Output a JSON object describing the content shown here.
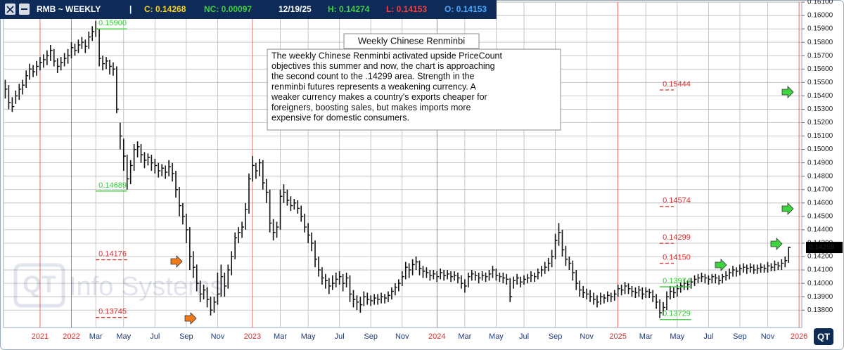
{
  "header": {
    "symbol": "RMB ~ WEEKLY",
    "separator": "|",
    "close": "C: 0.14268",
    "net_change": "NC: 0.00097",
    "date": "12/19/25",
    "high": "H: 0.14274",
    "low": "L: 0.14153",
    "open": "O: 0.14153"
  },
  "chart_data": {
    "type": "ohlc",
    "title": "Weekly Chinese Renminbi",
    "comment": [
      "The weekly Chinese Renminbi activated upside PriceCount",
      "objectives this summer and now, the chart is approaching",
      "the second count to the .14299 area.  Strength in the",
      "renminbi futures represents a weakening currency.  A",
      "weaker currency makes a country's exports cheaper for",
      "foreigners, boosting sales, but makes imports more",
      "expensive for domestic consumers."
    ],
    "watermark": "Info Systems",
    "logo": "QT",
    "color": "#111111",
    "grid": true,
    "grid_color": "#b8b8b8",
    "year_color": "#d83030",
    "month_color": "#1f3a78",
    "ylim": [
      0.1367,
      0.161
    ],
    "yticks": [
      {
        "value": 0.138,
        "label": "0.13800"
      },
      {
        "value": 0.139,
        "label": "0.13900"
      },
      {
        "value": 0.14,
        "label": "0.14000"
      },
      {
        "value": 0.141,
        "label": "0.14100"
      },
      {
        "value": 0.142,
        "label": "0.14200"
      },
      {
        "value": 0.143,
        "label": "0.14300"
      },
      {
        "value": 0.144,
        "label": "0.14400"
      },
      {
        "value": 0.145,
        "label": "0.14500"
      },
      {
        "value": 0.146,
        "label": "0.14600"
      },
      {
        "value": 0.147,
        "label": "0.14700"
      },
      {
        "value": 0.148,
        "label": "0.14800"
      },
      {
        "value": 0.149,
        "label": "0.14900"
      },
      {
        "value": 0.15,
        "label": "0.15000"
      },
      {
        "value": 0.151,
        "label": "0.15100"
      },
      {
        "value": 0.152,
        "label": "0.15200"
      },
      {
        "value": 0.153,
        "label": "0.15300"
      },
      {
        "value": 0.154,
        "label": "0.15400"
      },
      {
        "value": 0.155,
        "label": "0.15500"
      },
      {
        "value": 0.156,
        "label": "0.15600"
      },
      {
        "value": 0.157,
        "label": "0.15700"
      },
      {
        "value": 0.158,
        "label": "0.15800"
      },
      {
        "value": 0.159,
        "label": "0.15900"
      },
      {
        "value": 0.16,
        "label": "0.16000"
      },
      {
        "value": 0.161,
        "label": "0.16100"
      }
    ],
    "last_price": {
      "value": 0.14268,
      "label": "0.14268"
    },
    "categories": [
      null,
      null,
      null,
      null,
      null,
      null,
      null,
      null,
      null,
      null,
      "2021",
      null,
      null,
      null,
      null,
      null,
      null,
      null,
      null,
      "2022",
      null,
      null,
      null,
      null,
      null,
      null,
      "Mar",
      null,
      null,
      null,
      null,
      null,
      null,
      null,
      "May",
      null,
      null,
      null,
      null,
      null,
      null,
      null,
      null,
      "Jul",
      null,
      null,
      null,
      null,
      null,
      null,
      null,
      null,
      "Sep",
      null,
      null,
      null,
      null,
      null,
      null,
      null,
      null,
      "Nov",
      null,
      null,
      null,
      null,
      null,
      null,
      null,
      null,
      null,
      "2023",
      null,
      null,
      null,
      null,
      null,
      null,
      null,
      "Mar",
      null,
      null,
      null,
      null,
      null,
      null,
      null,
      "May",
      null,
      null,
      null,
      null,
      null,
      null,
      null,
      null,
      "Jul",
      null,
      null,
      null,
      null,
      null,
      null,
      null,
      null,
      "Sep",
      null,
      null,
      null,
      null,
      null,
      null,
      null,
      null,
      "Nov",
      null,
      null,
      null,
      null,
      null,
      null,
      null,
      null,
      null,
      "2024",
      null,
      null,
      null,
      null,
      null,
      null,
      null,
      "Mar",
      null,
      null,
      null,
      null,
      null,
      null,
      null,
      null,
      "May",
      null,
      null,
      null,
      null,
      null,
      null,
      null,
      "Jul",
      null,
      null,
      null,
      null,
      null,
      null,
      null,
      null,
      "Sep",
      null,
      null,
      null,
      null,
      null,
      null,
      null,
      null,
      "Nov",
      null,
      null,
      null,
      null,
      null,
      null,
      null,
      null,
      "2025",
      null,
      null,
      null,
      null,
      null,
      null,
      null,
      "Mar",
      null,
      null,
      null,
      null,
      null,
      null,
      null,
      null,
      "May",
      null,
      null,
      null,
      null,
      null,
      null,
      null,
      null,
      "Jul",
      null,
      null,
      null,
      null,
      null,
      null,
      null,
      null,
      "Sep",
      null,
      null,
      null,
      null,
      null,
      null,
      null,
      "Nov",
      null,
      null,
      null,
      null,
      null,
      null,
      null,
      null,
      "2026"
    ],
    "high": [
      0.1552,
      0.1548,
      0.1539,
      0.1544,
      0.1549,
      0.1552,
      0.1559,
      0.1564,
      0.1563,
      0.1566,
      0.1569,
      0.1571,
      0.1574,
      0.1578,
      0.1575,
      0.1568,
      0.1569,
      0.1572,
      0.1575,
      0.158,
      0.1579,
      0.1582,
      0.1584,
      0.1582,
      0.1588,
      0.1592,
      0.1596,
      0.159,
      0.157,
      0.1569,
      0.1567,
      0.1565,
      0.1562,
      0.152,
      0.1508,
      0.1496,
      0.1492,
      0.1504,
      0.1506,
      0.1504,
      0.1498,
      0.1497,
      0.1496,
      0.1493,
      0.149,
      0.1489,
      0.1488,
      0.1492,
      0.149,
      0.1484,
      0.1472,
      0.146,
      0.1452,
      0.1442,
      0.1424,
      0.1414,
      0.1402,
      0.1399,
      0.1397,
      0.139,
      0.139,
      0.1408,
      0.1414,
      0.1408,
      0.1414,
      0.1424,
      0.1438,
      0.1442,
      0.1446,
      0.146,
      0.1482,
      0.1495,
      0.149,
      0.1493,
      0.1492,
      0.1478,
      0.147,
      0.1448,
      0.1446,
      0.147,
      0.1474,
      0.147,
      0.1465,
      0.1463,
      0.1462,
      0.1458,
      0.1452,
      0.1445,
      0.1438,
      0.1432,
      0.142,
      0.1412,
      0.1407,
      0.1404,
      0.1406,
      0.1408,
      0.1409,
      0.1407,
      0.1408,
      0.1406,
      0.1395,
      0.1391,
      0.139,
      0.1394,
      0.1393,
      0.1391,
      0.1392,
      0.1392,
      0.1393,
      0.1392,
      0.1394,
      0.1397,
      0.14,
      0.1403,
      0.1409,
      0.1416,
      0.1415,
      0.1418,
      0.142,
      0.1417,
      0.1413,
      0.1412,
      0.141,
      0.141,
      0.1409,
      0.1411,
      0.141,
      0.141,
      0.1409,
      0.1409,
      0.1408,
      0.1406,
      0.1403,
      0.1408,
      0.141,
      0.1409,
      0.1408,
      0.1409,
      0.1408,
      0.141,
      0.1413,
      0.1411,
      0.1408,
      0.1408,
      0.1407,
      0.1404,
      0.1405,
      0.1407,
      0.1405,
      0.1406,
      0.1407,
      0.1409,
      0.1408,
      0.1411,
      0.1413,
      0.1416,
      0.1419,
      0.1425,
      0.1437,
      0.1445,
      0.144,
      0.1428,
      0.142,
      0.1417,
      0.141,
      0.1402,
      0.1398,
      0.1396,
      0.1395,
      0.1393,
      0.1391,
      0.1393,
      0.1392,
      0.1394,
      0.1393,
      0.1395,
      0.1399,
      0.1399,
      0.1401,
      0.14,
      0.1398,
      0.1397,
      0.1398,
      0.1397,
      0.1397,
      0.1396,
      0.1395,
      0.1392,
      0.1388,
      0.1386,
      0.1394,
      0.1398,
      0.1397,
      0.1399,
      0.1401,
      0.1403,
      0.1402,
      0.1404,
      0.1406,
      0.1407,
      0.1408,
      0.1407,
      0.1406,
      0.1407,
      0.1407,
      0.1406,
      0.1407,
      0.1409,
      0.1411,
      0.1413,
      0.1412,
      0.1414,
      0.1415,
      0.1414,
      0.1415,
      0.1414,
      0.1414,
      0.1415,
      0.1414,
      0.1416,
      0.1415,
      0.1417,
      0.1416,
      0.1418,
      0.142,
      0.14274,
      null,
      null,
      null
    ],
    "low": [
      0.1538,
      0.153,
      0.1528,
      0.1534,
      0.1537,
      0.1541,
      0.1546,
      0.1552,
      0.1554,
      0.1555,
      0.1559,
      0.1561,
      0.1563,
      0.1566,
      0.1562,
      0.1557,
      0.1559,
      0.1562,
      0.1564,
      0.1568,
      0.157,
      0.1572,
      0.1575,
      0.1572,
      0.1575,
      0.1581,
      0.1584,
      0.1562,
      0.1559,
      0.156,
      0.1556,
      0.1555,
      0.1527,
      0.15,
      0.1484,
      0.147,
      0.1474,
      0.1484,
      0.1494,
      0.149,
      0.1486,
      0.1488,
      0.1484,
      0.1482,
      0.1479,
      0.148,
      0.1478,
      0.148,
      0.1476,
      0.1464,
      0.145,
      0.1444,
      0.143,
      0.141,
      0.1404,
      0.1394,
      0.1386,
      0.1388,
      0.1382,
      0.1376,
      0.1378,
      0.1384,
      0.139,
      0.139,
      0.1396,
      0.1406,
      0.1418,
      0.143,
      0.1434,
      0.144,
      0.1452,
      0.1476,
      0.1478,
      0.148,
      0.147,
      0.146,
      0.1438,
      0.1432,
      0.1434,
      0.144,
      0.146,
      0.1458,
      0.1454,
      0.1455,
      0.1452,
      0.1446,
      0.1438,
      0.143,
      0.1424,
      0.1412,
      0.1405,
      0.1399,
      0.1396,
      0.1392,
      0.1395,
      0.1397,
      0.1399,
      0.1394,
      0.1397,
      0.1386,
      0.1382,
      0.138,
      0.1378,
      0.1383,
      0.1384,
      0.1383,
      0.1384,
      0.1384,
      0.1385,
      0.1385,
      0.1386,
      0.1388,
      0.1391,
      0.1394,
      0.1398,
      0.1403,
      0.1404,
      0.1406,
      0.141,
      0.1406,
      0.1404,
      0.1404,
      0.1402,
      0.1403,
      0.1401,
      0.1403,
      0.1402,
      0.1403,
      0.1401,
      0.1402,
      0.14,
      0.1396,
      0.1393,
      0.1397,
      0.1402,
      0.1402,
      0.14,
      0.1402,
      0.1401,
      0.1402,
      0.1404,
      0.1402,
      0.1401,
      0.14,
      0.1399,
      0.1386,
      0.1396,
      0.1399,
      0.1397,
      0.1399,
      0.14,
      0.1401,
      0.1401,
      0.1403,
      0.1405,
      0.1407,
      0.1409,
      0.1412,
      0.1418,
      0.1428,
      0.142,
      0.1413,
      0.141,
      0.1402,
      0.1395,
      0.139,
      0.1389,
      0.1388,
      0.1386,
      0.1384,
      0.1382,
      0.1384,
      0.1385,
      0.1386,
      0.1386,
      0.1387,
      0.139,
      0.1391,
      0.1392,
      0.1392,
      0.139,
      0.1389,
      0.139,
      0.1388,
      0.1389,
      0.1389,
      0.1386,
      0.1381,
      0.1374,
      0.1376,
      0.138,
      0.1388,
      0.1389,
      0.139,
      0.1393,
      0.1395,
      0.1395,
      0.1396,
      0.1398,
      0.14,
      0.1401,
      0.14,
      0.1399,
      0.14,
      0.14,
      0.1399,
      0.14,
      0.1402,
      0.1403,
      0.1405,
      0.1405,
      0.1406,
      0.1408,
      0.1407,
      0.1408,
      0.1407,
      0.1407,
      0.1408,
      0.1408,
      0.1408,
      0.1409,
      0.1409,
      0.141,
      0.141,
      0.1412,
      0.14153,
      null,
      null,
      null
    ],
    "close": [
      0.1545,
      0.1535,
      0.1532,
      0.154,
      0.1545,
      0.1548,
      0.1555,
      0.156,
      0.1558,
      0.1562,
      0.1565,
      0.1567,
      0.157,
      0.1574,
      0.1566,
      0.1562,
      0.1565,
      0.1568,
      0.157,
      0.1576,
      0.1574,
      0.1578,
      0.158,
      0.1577,
      0.1584,
      0.1588,
      0.159,
      0.1568,
      0.1564,
      0.1566,
      0.1562,
      0.156,
      0.153,
      0.151,
      0.1495,
      0.1478,
      0.1488,
      0.15,
      0.1502,
      0.1496,
      0.1492,
      0.1494,
      0.149,
      0.1488,
      0.1484,
      0.1486,
      0.1483,
      0.1487,
      0.1482,
      0.147,
      0.1458,
      0.145,
      0.144,
      0.142,
      0.1412,
      0.14,
      0.1392,
      0.1395,
      0.1388,
      0.138,
      0.1386,
      0.1392,
      0.1405,
      0.1398,
      0.141,
      0.142,
      0.1434,
      0.1438,
      0.1442,
      0.1455,
      0.1478,
      0.1488,
      0.1484,
      0.149,
      0.1475,
      0.1468,
      0.1445,
      0.1438,
      0.1442,
      0.1465,
      0.1468,
      0.1462,
      0.1458,
      0.146,
      0.1456,
      0.145,
      0.1442,
      0.1436,
      0.143,
      0.1418,
      0.141,
      0.1404,
      0.1402,
      0.1398,
      0.14,
      0.1403,
      0.1405,
      0.14,
      0.1404,
      0.1392,
      0.1388,
      0.1386,
      0.1384,
      0.139,
      0.1388,
      0.1387,
      0.1389,
      0.1388,
      0.139,
      0.1389,
      0.1391,
      0.1394,
      0.1397,
      0.14,
      0.1405,
      0.1412,
      0.141,
      0.1414,
      0.1416,
      0.1411,
      0.1409,
      0.1408,
      0.1406,
      0.1407,
      0.1405,
      0.1408,
      0.1406,
      0.1407,
      0.1405,
      0.1406,
      0.1404,
      0.14,
      0.1398,
      0.1405,
      0.1407,
      0.1406,
      0.1404,
      0.1406,
      0.1405,
      0.1407,
      0.141,
      0.1406,
      0.1405,
      0.1404,
      0.1403,
      0.139,
      0.1402,
      0.1404,
      0.1401,
      0.1403,
      0.1404,
      0.1406,
      0.1405,
      0.1408,
      0.141,
      0.1412,
      0.1415,
      0.142,
      0.1432,
      0.1438,
      0.1425,
      0.1418,
      0.1415,
      0.1408,
      0.14,
      0.1395,
      0.1393,
      0.1392,
      0.139,
      0.1388,
      0.1386,
      0.139,
      0.1389,
      0.1391,
      0.139,
      0.1392,
      0.1396,
      0.1395,
      0.1398,
      0.1396,
      0.1394,
      0.1393,
      0.1395,
      0.1392,
      0.1394,
      0.1393,
      0.139,
      0.1386,
      0.1378,
      0.1382,
      0.139,
      0.1394,
      0.1393,
      0.1396,
      0.1398,
      0.14,
      0.1399,
      0.1401,
      0.1403,
      0.1404,
      0.1405,
      0.1404,
      0.1403,
      0.1405,
      0.1404,
      0.1402,
      0.1405,
      0.1406,
      0.1408,
      0.141,
      0.1409,
      0.1411,
      0.1412,
      0.1411,
      0.1412,
      0.141,
      0.1411,
      0.1412,
      0.1411,
      0.1413,
      0.1412,
      0.1414,
      0.1413,
      0.1415,
      0.1417,
      0.14268,
      null,
      null,
      null
    ],
    "levels": [
      {
        "label": "0.15900",
        "value": 0.159,
        "color": "#34c934",
        "dashed": false,
        "from": 26,
        "to": 35
      },
      {
        "label": "0.14689",
        "value": 0.14689,
        "color": "#34c934",
        "dashed": false,
        "from": 26,
        "to": 35
      },
      {
        "label": "0.14176",
        "value": 0.14176,
        "color": "#d83030",
        "dashed": true,
        "from": 26,
        "to": 35
      },
      {
        "label": "0.13745",
        "value": 0.13745,
        "color": "#d83030",
        "dashed": true,
        "from": 26,
        "to": 35
      },
      {
        "label": "0.15444",
        "value": 0.15444,
        "color": "#d83030",
        "dashed": true,
        "from": 188,
        "to": 192
      },
      {
        "label": "0.14574",
        "value": 0.14574,
        "color": "#d83030",
        "dashed": true,
        "from": 188,
        "to": 192
      },
      {
        "label": "0.14299",
        "value": 0.14299,
        "color": "#d83030",
        "dashed": true,
        "from": 188,
        "to": 192
      },
      {
        "label": "0.14150",
        "value": 0.1415,
        "color": "#d83030",
        "dashed": true,
        "from": 188,
        "to": 192
      },
      {
        "label": "0.13974",
        "value": 0.13974,
        "color": "#34c934",
        "dashed": false,
        "from": 188,
        "to": 197
      },
      {
        "label": "0.13729",
        "value": 0.13729,
        "color": "#34c934",
        "dashed": false,
        "from": 188,
        "to": 197
      }
    ]
  }
}
